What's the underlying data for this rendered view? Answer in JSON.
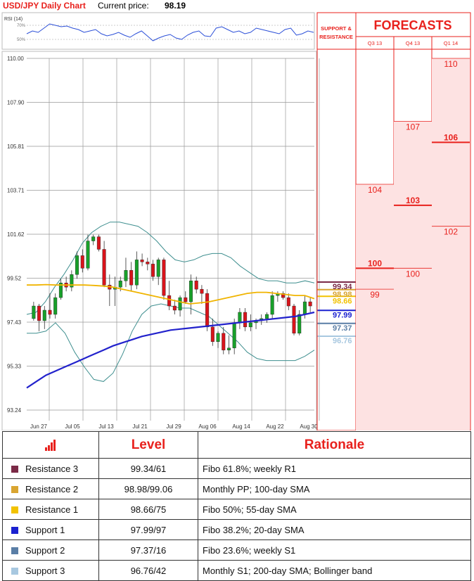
{
  "header": {
    "pair": "USD/JPY Daily Chart",
    "price_label": "Current price:",
    "price_value": "98.19"
  },
  "rsi": {
    "label": "RSI (14)",
    "levels": [
      "70%",
      "50%"
    ]
  },
  "side_panel": {
    "sr_label_1": "SUPPORT &",
    "sr_label_2": "RESISTANCE",
    "forecasts_title": "FORECASTS",
    "quarters": [
      "Q3 13",
      "Q4 13",
      "Q1 14"
    ]
  },
  "colors": {
    "accent_red": "#e8211d",
    "resistance_3": "#7b2a47",
    "resistance_2": "#d9a531",
    "resistance_1": "#f2c200",
    "support_1": "#1b21d0",
    "support_2": "#5a7ea6",
    "support_3": "#a8c8e0",
    "sma55": "#f0b400",
    "sma20": "#2222cc",
    "bollinger": "#3f8f8f"
  },
  "chart_data": {
    "type": "candlestick",
    "y_ticks": [
      "110.00",
      "107.90",
      "105.81",
      "103.71",
      "101.62",
      "99.52",
      "97.43",
      "95.33",
      "93.24"
    ],
    "ylim": [
      93.24,
      110.0
    ],
    "x_ticks": [
      "Jun 27",
      "Jul 05",
      "Jul 13",
      "Jul 21",
      "Jul 29",
      "Aug 06",
      "Aug 14",
      "Aug 22",
      "Aug 30"
    ],
    "candles": [
      [
        97.6,
        98.4,
        97.5,
        98.2
      ],
      [
        98.2,
        98.3,
        97.0,
        97.5
      ],
      [
        97.5,
        98.2,
        97.1,
        98.0
      ],
      [
        98.0,
        98.8,
        97.6,
        97.8
      ],
      [
        97.8,
        98.8,
        97.6,
        98.6
      ],
      [
        98.6,
        99.5,
        98.5,
        99.3
      ],
      [
        99.3,
        99.6,
        98.9,
        99.1
      ],
      [
        99.1,
        99.9,
        98.9,
        99.7
      ],
      [
        99.7,
        100.8,
        99.5,
        100.6
      ],
      [
        100.6,
        100.9,
        99.8,
        100.0
      ],
      [
        100.0,
        101.6,
        99.9,
        101.3
      ],
      [
        101.3,
        101.6,
        101.1,
        101.5
      ],
      [
        101.5,
        101.6,
        100.8,
        100.9
      ],
      [
        100.9,
        101.3,
        99.1,
        99.2
      ],
      [
        99.2,
        99.7,
        98.2,
        99.0
      ],
      [
        99.0,
        99.6,
        98.2,
        99.1
      ],
      [
        99.1,
        99.6,
        98.9,
        99.4
      ],
      [
        99.4,
        100.5,
        99.1,
        99.9
      ],
      [
        99.9,
        100.3,
        98.9,
        99.2
      ],
      [
        99.2,
        100.8,
        99.0,
        100.4
      ],
      [
        100.4,
        100.7,
        100.1,
        100.3
      ],
      [
        100.3,
        100.5,
        99.9,
        100.2
      ],
      [
        100.2,
        100.4,
        99.4,
        99.6
      ],
      [
        99.6,
        100.5,
        99.2,
        100.4
      ],
      [
        100.4,
        100.5,
        98.5,
        98.7
      ],
      [
        98.7,
        99.4,
        98.0,
        98.2
      ],
      [
        98.2,
        98.5,
        97.8,
        98.0
      ],
      [
        98.0,
        98.7,
        97.7,
        98.6
      ],
      [
        98.6,
        98.9,
        98.3,
        98.4
      ],
      [
        98.4,
        99.7,
        97.8,
        99.4
      ],
      [
        99.4,
        99.6,
        98.8,
        99.0
      ],
      [
        99.0,
        99.2,
        98.3,
        98.8
      ],
      [
        98.8,
        99.0,
        97.0,
        97.2
      ],
      [
        97.2,
        97.6,
        96.3,
        96.5
      ],
      [
        96.5,
        97.0,
        96.2,
        96.9
      ],
      [
        96.9,
        97.2,
        95.9,
        96.1
      ],
      [
        96.1,
        96.8,
        95.9,
        96.2
      ],
      [
        96.2,
        97.6,
        95.9,
        97.4
      ],
      [
        97.4,
        98.1,
        97.1,
        97.9
      ],
      [
        97.9,
        98.1,
        97.0,
        97.2
      ],
      [
        97.2,
        97.8,
        97.0,
        97.4
      ],
      [
        97.4,
        97.6,
        97.1,
        97.5
      ],
      [
        97.5,
        97.8,
        97.3,
        97.6
      ],
      [
        97.6,
        97.9,
        97.4,
        97.8
      ],
      [
        97.8,
        98.9,
        97.6,
        98.7
      ],
      [
        98.7,
        98.9,
        98.4,
        98.8
      ],
      [
        98.8,
        98.9,
        98.5,
        98.6
      ],
      [
        98.6,
        98.8,
        98.0,
        98.2
      ],
      [
        98.2,
        98.3,
        96.8,
        96.9
      ],
      [
        96.9,
        98.0,
        96.8,
        97.8
      ],
      [
        97.8,
        98.7,
        97.6,
        98.4
      ],
      [
        98.4,
        98.6,
        97.9,
        98.2
      ]
    ],
    "series": [
      {
        "name": "55-day SMA",
        "values": [
          99.2,
          99.2,
          99.22,
          99.2,
          99.2,
          99.2,
          99.2,
          99.18,
          99.15,
          99.1,
          99.0,
          98.9,
          98.8,
          98.7,
          98.6,
          98.5,
          98.4,
          98.3,
          98.35,
          98.4,
          98.5,
          98.6,
          98.7,
          98.8,
          98.85,
          98.85,
          98.8,
          98.75,
          98.7,
          98.7,
          98.55
        ]
      },
      {
        "name": "20-day SMA",
        "values": [
          94.3,
          94.6,
          94.9,
          95.1,
          95.3,
          95.5,
          95.7,
          95.9,
          96.1,
          96.3,
          96.45,
          96.6,
          96.75,
          96.85,
          96.95,
          97.05,
          97.1,
          97.15,
          97.2,
          97.25,
          97.3,
          97.35,
          97.4,
          97.45,
          97.5,
          97.55,
          97.6,
          97.65,
          97.7,
          97.8,
          97.9
        ]
      },
      {
        "name": "Upper Bollinger",
        "values": [
          97.8,
          97.9,
          98.4,
          99.1,
          99.7,
          100.4,
          101.2,
          101.7,
          102.0,
          102.2,
          102.2,
          102.1,
          102.0,
          101.7,
          101.3,
          100.8,
          100.4,
          100.3,
          100.4,
          100.6,
          100.7,
          100.7,
          100.5,
          100.1,
          99.8,
          99.5,
          99.4,
          99.4,
          99.3,
          99.3,
          99.4,
          99.3
        ]
      },
      {
        "name": "Lower Bollinger",
        "values": [
          96.9,
          96.9,
          97.0,
          97.4,
          96.9,
          96.0,
          95.3,
          94.7,
          94.6,
          95.0,
          95.9,
          97.0,
          97.8,
          98.2,
          98.3,
          98.2,
          98.1,
          98.1,
          97.9,
          97.7,
          97.3,
          96.9,
          96.5,
          96.0,
          95.7,
          95.6,
          95.6,
          95.6,
          95.6,
          95.8,
          96.1
        ]
      }
    ],
    "levels": [
      {
        "name": "Resistance 3",
        "label": "99.34",
        "value": 99.34
      },
      {
        "name": "Resistance 2",
        "label": "98.98",
        "value": 98.98
      },
      {
        "name": "Resistance 1",
        "label": "98.66",
        "value": 98.66
      },
      {
        "name": "Support 1",
        "label": "97.99",
        "value": 97.99
      },
      {
        "name": "Support 2",
        "label": "97.37",
        "value": 97.37
      },
      {
        "name": "Support 3",
        "label": "96.76",
        "value": 96.76
      }
    ],
    "forecasts": [
      {
        "quarter": "Q3 13",
        "high": 104,
        "median": 100,
        "low": 99
      },
      {
        "quarter": "Q4 13",
        "high": 107,
        "median": 103,
        "low": 100
      },
      {
        "quarter": "Q1 14",
        "high": 110,
        "median": 106,
        "low": 102
      }
    ],
    "rsi_values": [
      58,
      62,
      60,
      66,
      72,
      70,
      68,
      69,
      66,
      64,
      60,
      62,
      64,
      58,
      55,
      57,
      60,
      56,
      53,
      58,
      62,
      55,
      48,
      52,
      55,
      57,
      52,
      50,
      56,
      60,
      62,
      55,
      54,
      66,
      68,
      64,
      60,
      62,
      58,
      60,
      66,
      64,
      62,
      60,
      58,
      64,
      66,
      56,
      58,
      62,
      60
    ]
  },
  "table": {
    "col_level": "Level",
    "col_rationale": "Rationale",
    "rows": [
      {
        "name": "Resistance 3",
        "level": "99.34/61",
        "rationale": "Fibo 61.8%; weekly R1"
      },
      {
        "name": "Resistance 2",
        "level": "98.98/99.06",
        "rationale": "Monthly PP; 100-day SMA"
      },
      {
        "name": "Resistance 1",
        "level": "98.66/75",
        "rationale": "Fibo 50%; 55-day SMA"
      },
      {
        "name": "Support 1",
        "level": "97.99/97",
        "rationale": "Fibo 38.2%; 20-day SMA"
      },
      {
        "name": "Support 2",
        "level": "97.37/16",
        "rationale": "Fibo 23.6%; weekly S1"
      },
      {
        "name": "Support 3",
        "level": "96.76/42",
        "rationale": "Monthly S1; 200-day SMA; Bollinger band"
      }
    ]
  }
}
